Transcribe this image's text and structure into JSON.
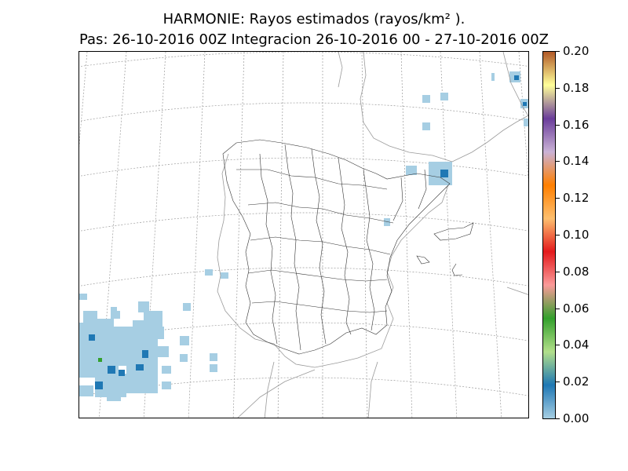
{
  "title": {
    "line1": "HARMONIE: Rayos estimados  (rayos/km² ).",
    "line2": "Pas: 26-10-2016 00Z Integracion 26-10-2016 00 - 27-10-2016 00Z"
  },
  "colorbar": {
    "ticks": [
      "0.00",
      "0.02",
      "0.04",
      "0.06",
      "0.08",
      "0.10",
      "0.12",
      "0.14",
      "0.16",
      "0.18",
      "0.20"
    ],
    "colors": [
      "#a6cee3",
      "#1f78b4",
      "#b2df8a",
      "#33a02c",
      "#fb9a99",
      "#e31a1c",
      "#fdbf6f",
      "#ff7f00",
      "#cab2d6",
      "#6a3d9a",
      "#ffff99",
      "#b15928"
    ]
  }
}
